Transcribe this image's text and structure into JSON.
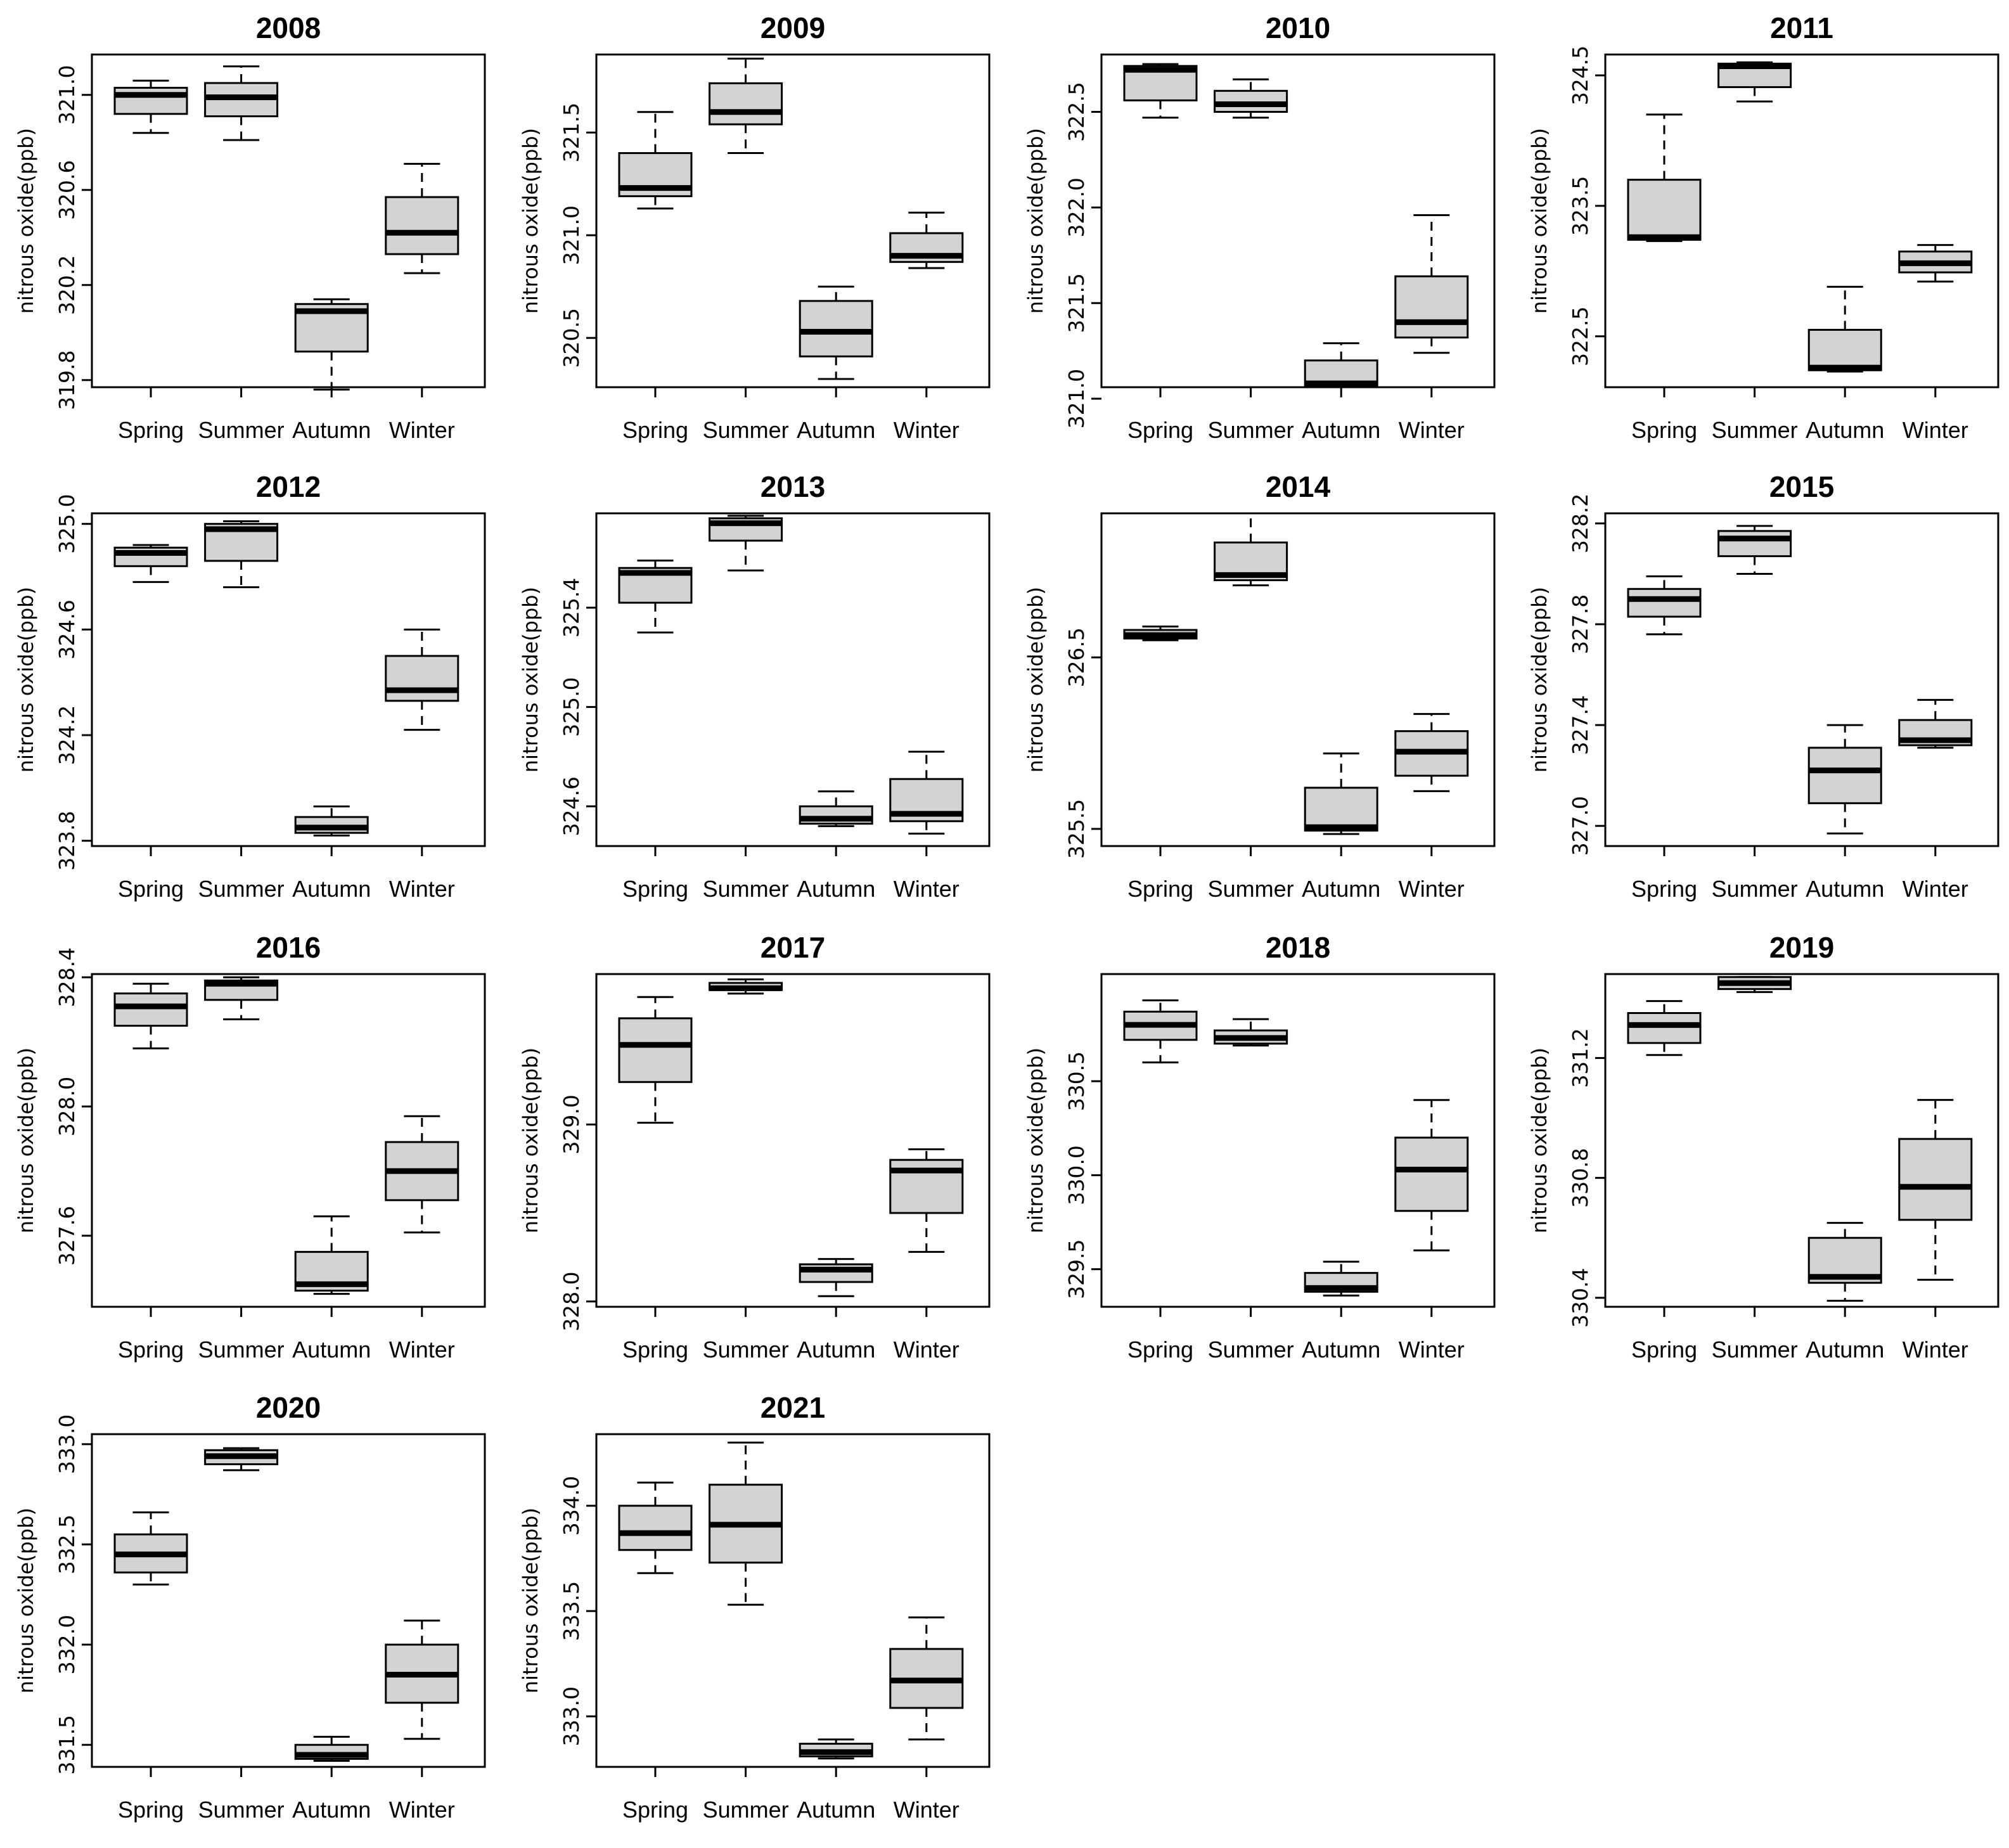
{
  "chart_data": [
    {
      "type": "box",
      "title": "2008",
      "categories": [
        "Spring",
        "Summer",
        "Autumn",
        "Winter"
      ],
      "ylabel": "nitrous oxide(ppb)",
      "ylim": [
        319.77,
        321.17
      ],
      "yticks_text": [
        "319.8",
        "320.2",
        "320.6",
        "321.0"
      ],
      "series": [
        {
          "name": "",
          "boxes": [
            {
              "whisker_low": 320.84,
              "q1": 320.92,
              "median": 321.0,
              "q3": 321.03,
              "whisker_high": 321.06
            },
            {
              "whisker_low": 320.81,
              "q1": 320.91,
              "median": 320.99,
              "q3": 321.05,
              "whisker_high": 321.12
            },
            {
              "whisker_low": 319.76,
              "q1": 319.92,
              "median": 320.09,
              "q3": 320.12,
              "whisker_high": 320.14
            },
            {
              "whisker_low": 320.25,
              "q1": 320.33,
              "median": 320.42,
              "q3": 320.57,
              "whisker_high": 320.71
            }
          ]
        }
      ]
    },
    {
      "type": "box",
      "title": "2009",
      "categories": [
        "Spring",
        "Summer",
        "Autumn",
        "Winter"
      ],
      "ylabel": "nitrous oxide(ppb)",
      "ylim": [
        320.26,
        321.88
      ],
      "yticks_text": [
        "320.5",
        "321.0",
        "321.5"
      ],
      "series": [
        {
          "name": "",
          "boxes": [
            {
              "whisker_low": 321.13,
              "q1": 321.19,
              "median": 321.23,
              "q3": 321.4,
              "whisker_high": 321.6
            },
            {
              "whisker_low": 321.4,
              "q1": 321.54,
              "median": 321.6,
              "q3": 321.74,
              "whisker_high": 321.86
            },
            {
              "whisker_low": 320.3,
              "q1": 320.41,
              "median": 320.53,
              "q3": 320.68,
              "whisker_high": 320.75
            },
            {
              "whisker_low": 320.84,
              "q1": 320.87,
              "median": 320.9,
              "q3": 321.01,
              "whisker_high": 321.11
            }
          ]
        }
      ]
    },
    {
      "type": "box",
      "title": "2010",
      "categories": [
        "Spring",
        "Summer",
        "Autumn",
        "Winter"
      ],
      "ylabel": "nitrous oxide(ppb)",
      "ylim": [
        321.06,
        322.8
      ],
      "yticks_text": [
        "321.0",
        "321.5",
        "322.0",
        "322.5"
      ],
      "series": [
        {
          "name": "",
          "boxes": [
            {
              "whisker_low": 322.47,
              "q1": 322.56,
              "median": 322.72,
              "q3": 322.74,
              "whisker_high": 322.75
            },
            {
              "whisker_low": 322.47,
              "q1": 322.5,
              "median": 322.54,
              "q3": 322.61,
              "whisker_high": 322.67
            },
            {
              "whisker_low": 321.06,
              "q1": 321.07,
              "median": 321.08,
              "q3": 321.2,
              "whisker_high": 321.29
            },
            {
              "whisker_low": 321.24,
              "q1": 321.32,
              "median": 321.4,
              "q3": 321.64,
              "whisker_high": 321.96
            }
          ]
        }
      ]
    },
    {
      "type": "box",
      "title": "2011",
      "categories": [
        "Spring",
        "Summer",
        "Autumn",
        "Winter"
      ],
      "ylabel": "nitrous oxide(ppb)",
      "ylim": [
        322.11,
        324.66
      ],
      "yticks_text": [
        "322.5",
        "323.5",
        "324.5"
      ],
      "series": [
        {
          "name": "",
          "boxes": [
            {
              "whisker_low": 323.23,
              "q1": 323.24,
              "median": 323.26,
              "q3": 323.7,
              "whisker_high": 324.2
            },
            {
              "whisker_low": 324.3,
              "q1": 324.41,
              "median": 324.57,
              "q3": 324.59,
              "whisker_high": 324.6
            },
            {
              "whisker_low": 322.23,
              "q1": 322.24,
              "median": 322.26,
              "q3": 322.55,
              "whisker_high": 322.88
            },
            {
              "whisker_low": 322.92,
              "q1": 322.99,
              "median": 323.06,
              "q3": 323.15,
              "whisker_high": 323.2
            }
          ]
        }
      ]
    },
    {
      "type": "box",
      "title": "2012",
      "categories": [
        "Spring",
        "Summer",
        "Autumn",
        "Winter"
      ],
      "ylabel": "nitrous oxide(ppb)",
      "ylim": [
        323.78,
        325.04
      ],
      "yticks_text": [
        "323.8",
        "324.2",
        "324.6",
        "325.0"
      ],
      "series": [
        {
          "name": "",
          "boxes": [
            {
              "whisker_low": 324.78,
              "q1": 324.84,
              "median": 324.89,
              "q3": 324.91,
              "whisker_high": 324.92
            },
            {
              "whisker_low": 324.76,
              "q1": 324.86,
              "median": 324.98,
              "q3": 325.0,
              "whisker_high": 325.01
            },
            {
              "whisker_low": 323.82,
              "q1": 323.83,
              "median": 323.85,
              "q3": 323.89,
              "whisker_high": 323.93
            },
            {
              "whisker_low": 324.22,
              "q1": 324.33,
              "median": 324.37,
              "q3": 324.5,
              "whisker_high": 324.6
            }
          ]
        }
      ]
    },
    {
      "type": "box",
      "title": "2013",
      "categories": [
        "Spring",
        "Summer",
        "Autumn",
        "Winter"
      ],
      "ylabel": "nitrous oxide(ppb)",
      "ylim": [
        324.44,
        325.78
      ],
      "yticks_text": [
        "324.6",
        "325.0",
        "325.4"
      ],
      "series": [
        {
          "name": "",
          "boxes": [
            {
              "whisker_low": 325.3,
              "q1": 325.42,
              "median": 325.54,
              "q3": 325.56,
              "whisker_high": 325.59
            },
            {
              "whisker_low": 325.55,
              "q1": 325.67,
              "median": 325.74,
              "q3": 325.76,
              "whisker_high": 325.77
            },
            {
              "whisker_low": 324.52,
              "q1": 324.53,
              "median": 324.55,
              "q3": 324.6,
              "whisker_high": 324.66
            },
            {
              "whisker_low": 324.49,
              "q1": 324.54,
              "median": 324.57,
              "q3": 324.71,
              "whisker_high": 324.82
            }
          ]
        }
      ]
    },
    {
      "type": "box",
      "title": "2014",
      "categories": [
        "Spring",
        "Summer",
        "Autumn",
        "Winter"
      ],
      "ylabel": "nitrous oxide(ppb)",
      "ylim": [
        325.4,
        327.34
      ],
      "yticks_text": [
        "325.5",
        "326.5"
      ],
      "series": [
        {
          "name": "",
          "boxes": [
            {
              "whisker_low": 326.6,
              "q1": 326.61,
              "median": 326.63,
              "q3": 326.66,
              "whisker_high": 326.68
            },
            {
              "whisker_low": 326.92,
              "q1": 326.95,
              "median": 326.98,
              "q3": 327.17,
              "whisker_high": 327.34
            },
            {
              "whisker_low": 325.47,
              "q1": 325.49,
              "median": 325.51,
              "q3": 325.74,
              "whisker_high": 325.94
            },
            {
              "whisker_low": 325.72,
              "q1": 325.81,
              "median": 325.95,
              "q3": 326.07,
              "whisker_high": 326.17
            }
          ]
        }
      ]
    },
    {
      "type": "box",
      "title": "2015",
      "categories": [
        "Spring",
        "Summer",
        "Autumn",
        "Winter"
      ],
      "ylabel": "nitrous oxide(ppb)",
      "ylim": [
        326.92,
        328.24
      ],
      "yticks_text": [
        "327.0",
        "327.4",
        "327.8",
        "328.2"
      ],
      "series": [
        {
          "name": "",
          "boxes": [
            {
              "whisker_low": 327.76,
              "q1": 327.83,
              "median": 327.9,
              "q3": 327.94,
              "whisker_high": 327.99
            },
            {
              "whisker_low": 328.0,
              "q1": 328.07,
              "median": 328.14,
              "q3": 328.17,
              "whisker_high": 328.19
            },
            {
              "whisker_low": 326.97,
              "q1": 327.09,
              "median": 327.22,
              "q3": 327.31,
              "whisker_high": 327.4
            },
            {
              "whisker_low": 327.31,
              "q1": 327.32,
              "median": 327.34,
              "q3": 327.42,
              "whisker_high": 327.5
            }
          ]
        }
      ]
    },
    {
      "type": "box",
      "title": "2016",
      "categories": [
        "Spring",
        "Summer",
        "Autumn",
        "Winter"
      ],
      "ylabel": "nitrous oxide(ppb)",
      "ylim": [
        327.38,
        328.41
      ],
      "yticks_text": [
        "327.6",
        "328.0",
        "328.4"
      ],
      "series": [
        {
          "name": "",
          "boxes": [
            {
              "whisker_low": 328.18,
              "q1": 328.25,
              "median": 328.31,
              "q3": 328.35,
              "whisker_high": 328.38
            },
            {
              "whisker_low": 328.27,
              "q1": 328.33,
              "median": 328.38,
              "q3": 328.39,
              "whisker_high": 328.4
            },
            {
              "whisker_low": 327.42,
              "q1": 327.43,
              "median": 327.45,
              "q3": 327.55,
              "whisker_high": 327.66
            },
            {
              "whisker_low": 327.61,
              "q1": 327.71,
              "median": 327.8,
              "q3": 327.89,
              "whisker_high": 327.97
            }
          ]
        }
      ]
    },
    {
      "type": "box",
      "title": "2017",
      "categories": [
        "Spring",
        "Summer",
        "Autumn",
        "Winter"
      ],
      "ylabel": "nitrous oxide(ppb)",
      "ylim": [
        327.97,
        329.85
      ],
      "yticks_text": [
        "328.0",
        "329.0"
      ],
      "series": [
        {
          "name": "",
          "boxes": [
            {
              "whisker_low": 329.01,
              "q1": 329.24,
              "median": 329.45,
              "q3": 329.6,
              "whisker_high": 329.72
            },
            {
              "whisker_low": 329.74,
              "q1": 329.76,
              "median": 329.77,
              "q3": 329.8,
              "whisker_high": 329.82
            },
            {
              "whisker_low": 328.03,
              "q1": 328.11,
              "median": 328.18,
              "q3": 328.21,
              "whisker_high": 328.24
            },
            {
              "whisker_low": 328.28,
              "q1": 328.5,
              "median": 328.74,
              "q3": 328.8,
              "whisker_high": 328.86
            }
          ]
        }
      ]
    },
    {
      "type": "box",
      "title": "2018",
      "categories": [
        "Spring",
        "Summer",
        "Autumn",
        "Winter"
      ],
      "ylabel": "nitrous oxide(ppb)",
      "ylim": [
        329.3,
        331.07
      ],
      "yticks_text": [
        "329.5",
        "330.0",
        "330.5"
      ],
      "series": [
        {
          "name": "",
          "boxes": [
            {
              "whisker_low": 330.6,
              "q1": 330.72,
              "median": 330.8,
              "q3": 330.87,
              "whisker_high": 330.93
            },
            {
              "whisker_low": 330.69,
              "q1": 330.7,
              "median": 330.73,
              "q3": 330.77,
              "whisker_high": 330.83
            },
            {
              "whisker_low": 329.36,
              "q1": 329.38,
              "median": 329.4,
              "q3": 329.48,
              "whisker_high": 329.54
            },
            {
              "whisker_low": 329.6,
              "q1": 329.81,
              "median": 330.03,
              "q3": 330.2,
              "whisker_high": 330.4
            }
          ]
        }
      ]
    },
    {
      "type": "box",
      "title": "2019",
      "categories": [
        "Spring",
        "Summer",
        "Autumn",
        "Winter"
      ],
      "ylabel": "nitrous oxide(ppb)",
      "ylim": [
        330.37,
        331.48
      ],
      "yticks_text": [
        "330.4",
        "330.8",
        "331.2"
      ],
      "series": [
        {
          "name": "",
          "boxes": [
            {
              "whisker_low": 331.21,
              "q1": 331.25,
              "median": 331.31,
              "q3": 331.35,
              "whisker_high": 331.39
            },
            {
              "whisker_low": 331.42,
              "q1": 331.43,
              "median": 331.45,
              "q3": 331.47,
              "whisker_high": 331.47
            },
            {
              "whisker_low": 330.39,
              "q1": 330.45,
              "median": 330.47,
              "q3": 330.6,
              "whisker_high": 330.65
            },
            {
              "whisker_low": 330.46,
              "q1": 330.66,
              "median": 330.77,
              "q3": 330.93,
              "whisker_high": 331.06
            }
          ]
        }
      ]
    },
    {
      "type": "box",
      "title": "2020",
      "categories": [
        "Spring",
        "Summer",
        "Autumn",
        "Winter"
      ],
      "ylabel": "nitrous oxide(ppb)",
      "ylim": [
        331.39,
        333.05
      ],
      "yticks_text": [
        "331.5",
        "332.0",
        "332.5",
        "333.0"
      ],
      "series": [
        {
          "name": "",
          "boxes": [
            {
              "whisker_low": 332.3,
              "q1": 332.36,
              "median": 332.45,
              "q3": 332.55,
              "whisker_high": 332.66
            },
            {
              "whisker_low": 332.87,
              "q1": 332.9,
              "median": 332.94,
              "q3": 332.97,
              "whisker_high": 332.98
            },
            {
              "whisker_low": 331.42,
              "q1": 331.43,
              "median": 331.45,
              "q3": 331.5,
              "whisker_high": 331.54
            },
            {
              "whisker_low": 331.53,
              "q1": 331.71,
              "median": 331.85,
              "q3": 332.0,
              "whisker_high": 332.12
            }
          ]
        }
      ]
    },
    {
      "type": "box",
      "title": "2021",
      "categories": [
        "Spring",
        "Summer",
        "Autumn",
        "Winter"
      ],
      "ylabel": "nitrous oxide(ppb)",
      "ylim": [
        332.76,
        334.34
      ],
      "yticks_text": [
        "333.0",
        "333.5",
        "334.0"
      ],
      "series": [
        {
          "name": "",
          "boxes": [
            {
              "whisker_low": 333.68,
              "q1": 333.79,
              "median": 333.87,
              "q3": 334.0,
              "whisker_high": 334.11
            },
            {
              "whisker_low": 333.53,
              "q1": 333.73,
              "median": 333.91,
              "q3": 334.1,
              "whisker_high": 334.3
            },
            {
              "whisker_low": 332.8,
              "q1": 332.81,
              "median": 332.83,
              "q3": 332.87,
              "whisker_high": 332.89
            },
            {
              "whisker_low": 332.89,
              "q1": 333.04,
              "median": 333.17,
              "q3": 333.32,
              "whisker_high": 333.47
            }
          ]
        }
      ]
    }
  ]
}
